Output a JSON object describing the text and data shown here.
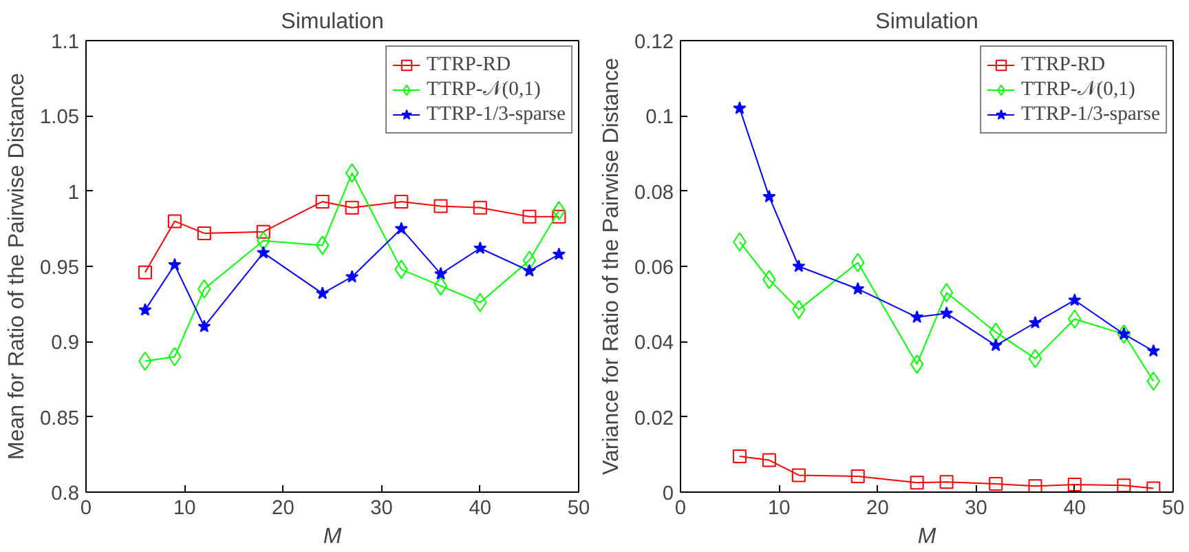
{
  "chart_data": [
    {
      "type": "line",
      "title": "Simulation",
      "xlabel": "M",
      "ylabel": "Mean for Ratio of the Pairwise Distance",
      "x": [
        6,
        9,
        12,
        18,
        24,
        27,
        32,
        36,
        40,
        45,
        48
      ],
      "xlim": [
        0,
        50
      ],
      "xticks": [
        0,
        10,
        20,
        30,
        40,
        50
      ],
      "ylim": [
        0.8,
        1.1
      ],
      "yticks": [
        {
          "value": 0.8,
          "label": "0.8"
        },
        0.85,
        {
          "value": 0.9,
          "label": "0.9"
        },
        0.95,
        {
          "value": 1.0,
          "label": "1"
        },
        1.05,
        {
          "value": 1.1,
          "label": "1.1"
        }
      ],
      "grid": false,
      "legend": "top right",
      "series": [
        {
          "name": "TTRP-RD",
          "color": "#ff0000",
          "marker": "square",
          "values": [
            0.946,
            0.98,
            0.972,
            0.973,
            0.993,
            0.989,
            0.993,
            0.99,
            0.989,
            0.983,
            0.983
          ]
        },
        {
          "name": "TTRP-𝒩(0,1)",
          "color": "#00ff00",
          "marker": "diamond",
          "values": [
            0.887,
            0.89,
            0.935,
            0.967,
            0.964,
            1.012,
            0.948,
            0.937,
            0.926,
            0.954,
            0.987
          ]
        },
        {
          "name": "TTRP-1/3-sparse",
          "color": "#0000ff",
          "marker": "star",
          "values": [
            0.921,
            0.951,
            0.91,
            0.959,
            0.932,
            0.943,
            0.975,
            0.945,
            0.962,
            0.947,
            0.958
          ]
        }
      ]
    },
    {
      "type": "line",
      "title": "Simulation",
      "xlabel": "M",
      "ylabel": "Variance for Ratio of the Pairwise Distance",
      "x": [
        6,
        9,
        12,
        18,
        24,
        27,
        32,
        36,
        40,
        45,
        48
      ],
      "xlim": [
        0,
        50
      ],
      "xticks": [
        0,
        10,
        20,
        30,
        40,
        50
      ],
      "ylim": [
        0,
        0.12
      ],
      "yticks": [
        0,
        0.02,
        0.04,
        0.06,
        0.08,
        {
          "value": 0.1,
          "label": "0.1"
        },
        0.12
      ],
      "grid": false,
      "legend": "top right",
      "series": [
        {
          "name": "TTRP-RD",
          "color": "#ff0000",
          "marker": "square",
          "values": [
            0.0095,
            0.0085,
            0.0045,
            0.0042,
            0.0025,
            0.0027,
            0.0022,
            0.0016,
            0.002,
            0.0018,
            0.001
          ]
        },
        {
          "name": "TTRP-𝒩(0,1)",
          "color": "#00ff00",
          "marker": "diamond",
          "values": [
            0.0665,
            0.0565,
            0.0485,
            0.061,
            0.034,
            0.053,
            0.0425,
            0.0355,
            0.046,
            0.042,
            0.0295
          ]
        },
        {
          "name": "TTRP-1/3-sparse",
          "color": "#0000ff",
          "marker": "star",
          "values": [
            0.102,
            0.0785,
            0.06,
            0.054,
            0.0465,
            0.0475,
            0.039,
            0.045,
            0.051,
            0.042,
            0.0375
          ]
        }
      ]
    }
  ]
}
